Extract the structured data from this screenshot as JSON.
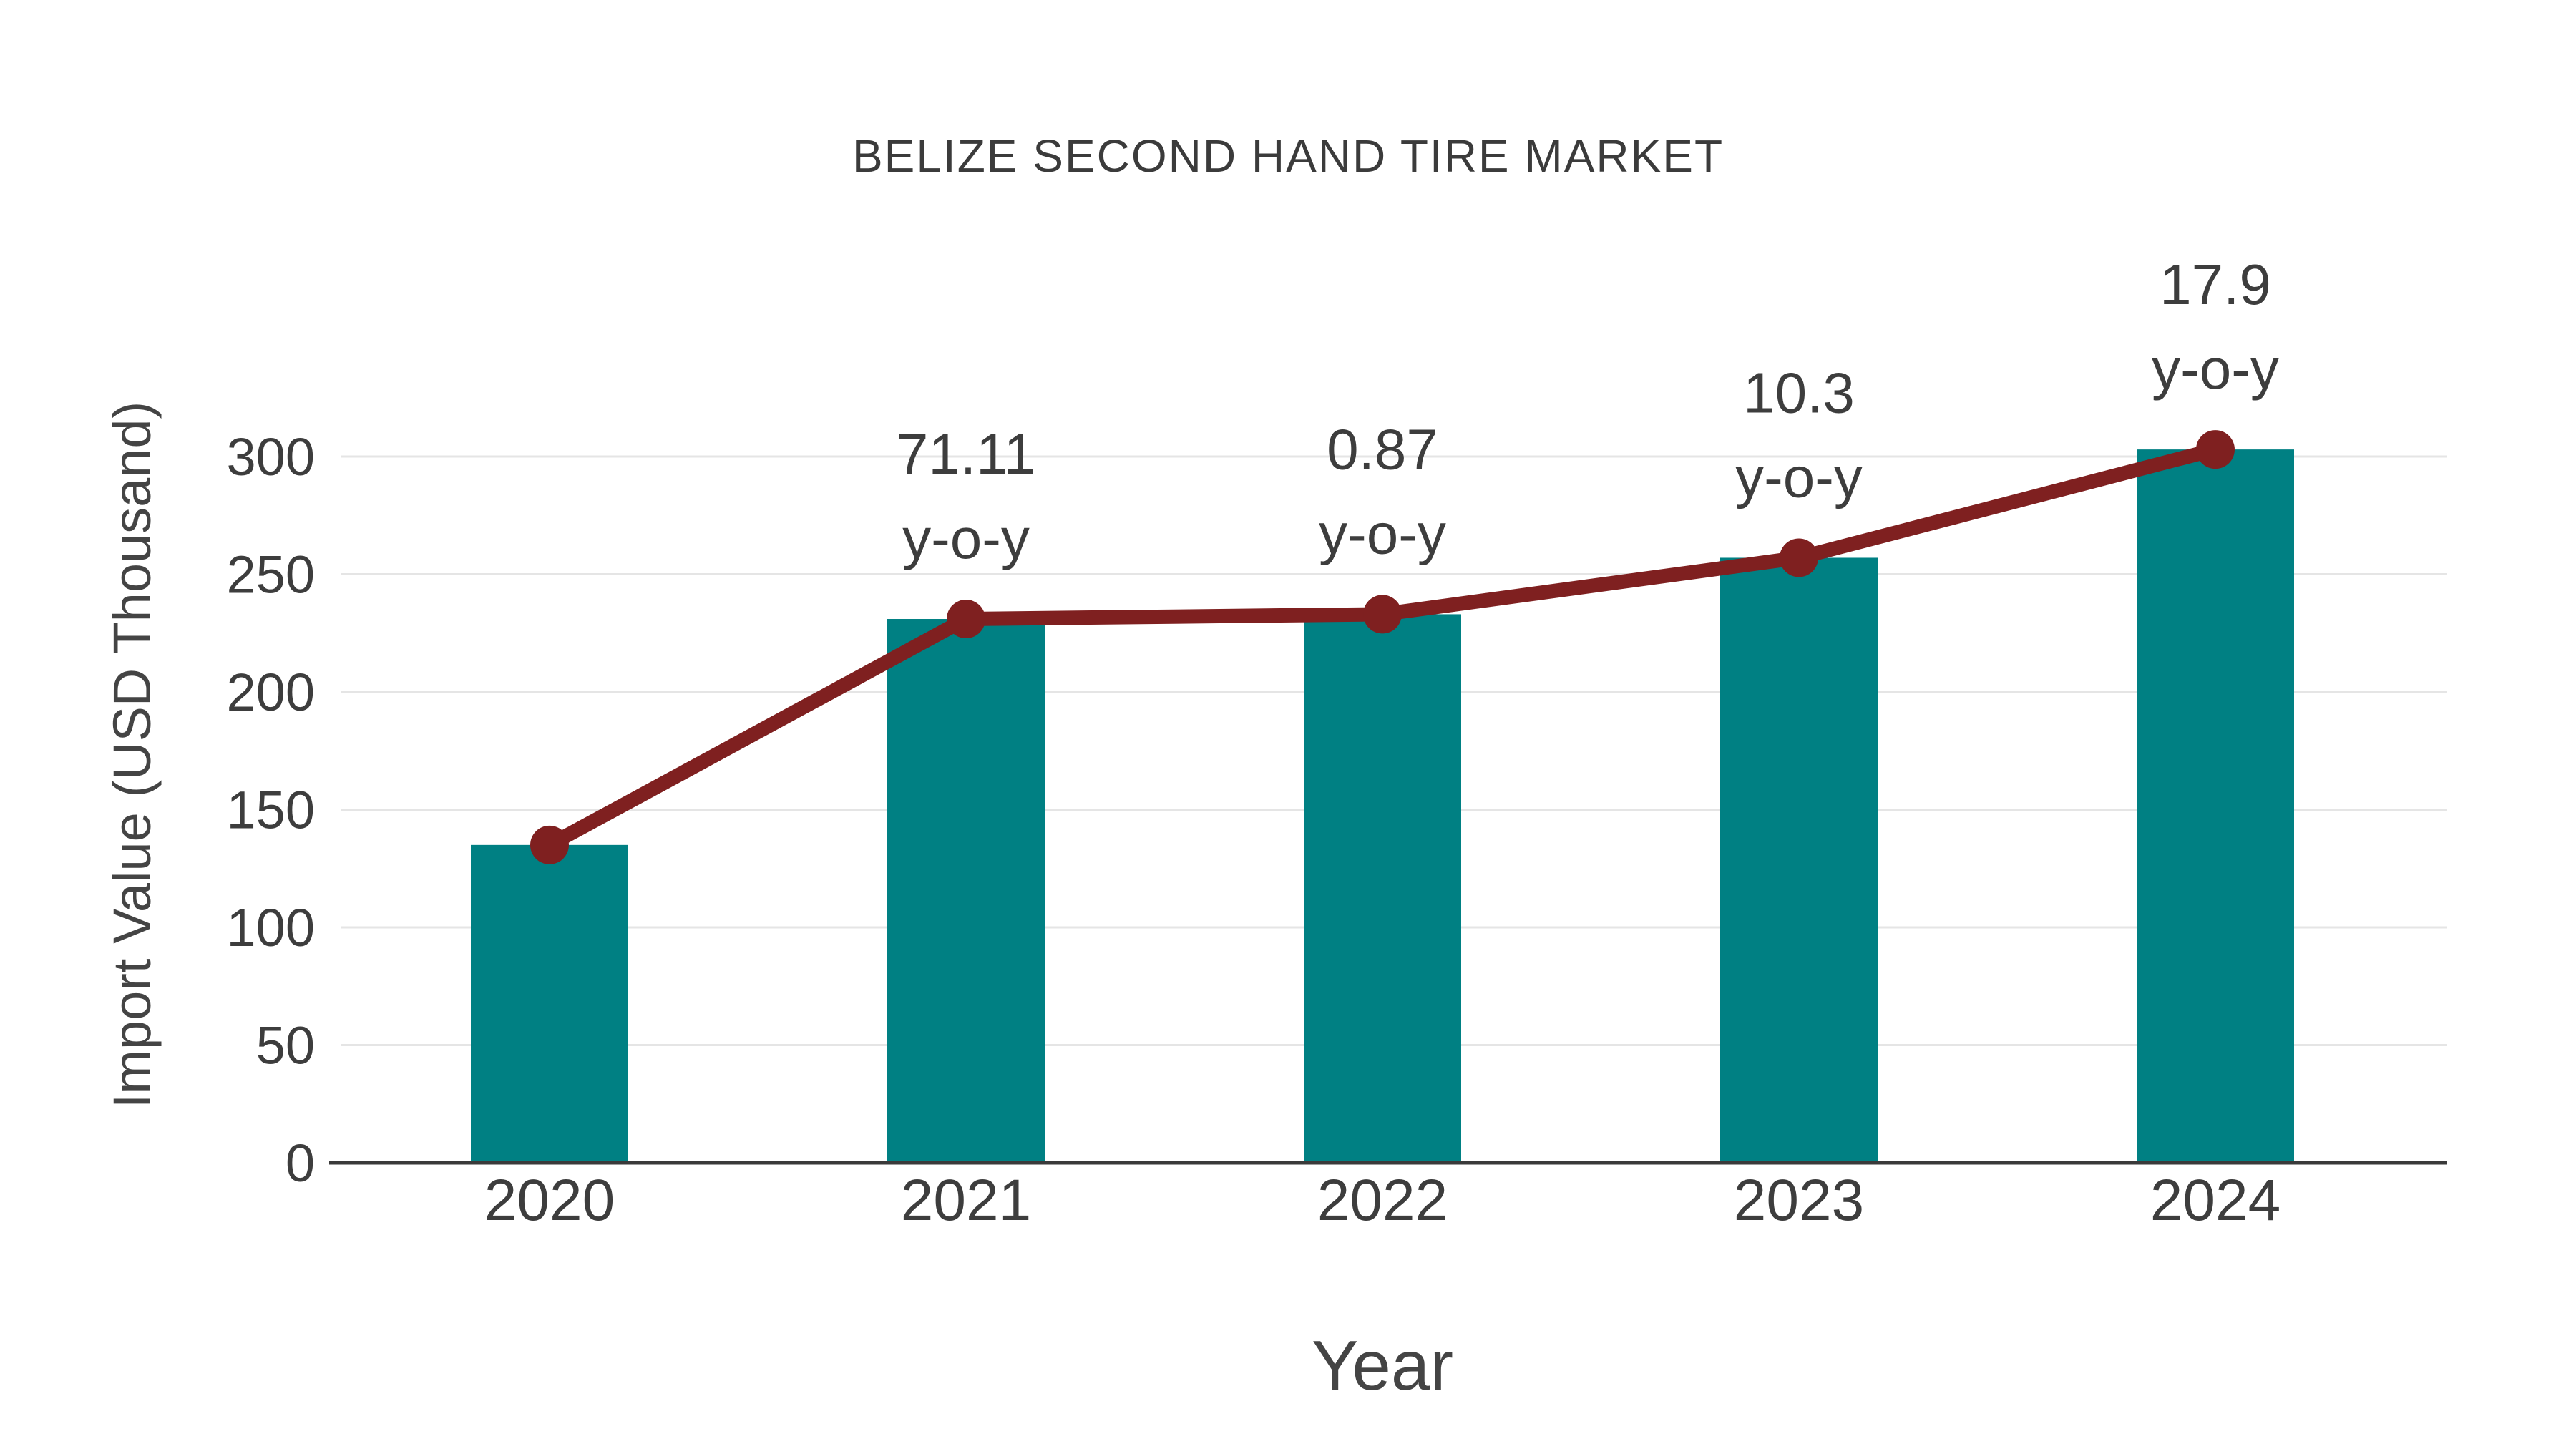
{
  "chart_data": {
    "type": "bar",
    "title": "BELIZE SECOND HAND TIRE MARKET",
    "xlabel": "Year",
    "ylabel": "Import Value (USD Thousand)",
    "categories": [
      "2020",
      "2021",
      "2022",
      "2023",
      "2024"
    ],
    "series": [
      {
        "name": "import-value-bars",
        "type": "bar",
        "values": [
          135,
          231,
          233,
          257,
          303
        ]
      },
      {
        "name": "import-value-trend",
        "type": "line",
        "values": [
          135,
          231,
          233,
          257,
          303
        ]
      }
    ],
    "annotations": [
      {
        "category_index": 1,
        "value_label": "71.11",
        "suffix_label": "y-o-y"
      },
      {
        "category_index": 2,
        "value_label": "0.87",
        "suffix_label": "y-o-y"
      },
      {
        "category_index": 3,
        "value_label": "10.3",
        "suffix_label": "y-o-y"
      },
      {
        "category_index": 4,
        "value_label": "17.9",
        "suffix_label": "y-o-y"
      }
    ],
    "ylim": [
      0,
      320
    ],
    "yticks": [
      0,
      50,
      100,
      150,
      200,
      250,
      300
    ],
    "grid": true,
    "legend_position": "none",
    "colors": {
      "bar": "#008083",
      "line": "#7f2020",
      "marker": "#7f2020",
      "grid": "#e5e5e5",
      "axis": "#3a3a3a",
      "tick_text": "#3d3d3d",
      "title_text": "#3b3b3b",
      "background": "#ffffff"
    }
  }
}
